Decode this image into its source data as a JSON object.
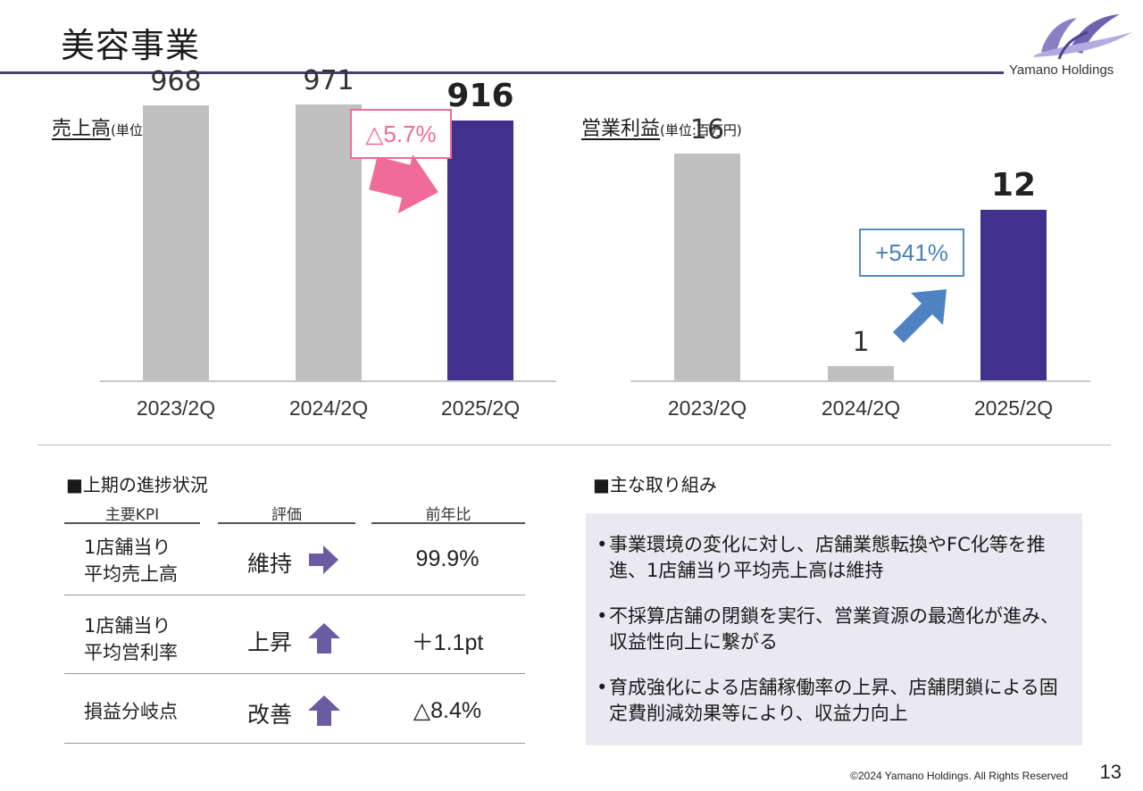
{
  "header": {
    "title": "美容事業",
    "logo_text": "Yamano Holdings"
  },
  "chart_data": [
    {
      "type": "bar",
      "title": "売上高",
      "unit_label": "(単位:百万円)",
      "categories": [
        "2023/2Q",
        "2024/2Q",
        "2025/2Q"
      ],
      "values": [
        968,
        971,
        916
      ],
      "value_labels": [
        "968",
        "971",
        "916"
      ],
      "ylim": [
        0,
        1100
      ],
      "annotation": "△5.7%",
      "colors": [
        "#c0c0c0",
        "#c0c0c0",
        "#42318c"
      ],
      "annotation_color": "#f06a9a"
    },
    {
      "type": "bar",
      "title": "営業利益",
      "unit_label": "(単位:百万円)",
      "categories": [
        "2023/2Q",
        "2024/2Q",
        "2025/2Q"
      ],
      "values": [
        16,
        1,
        12
      ],
      "value_labels": [
        "16",
        "1",
        "12"
      ],
      "ylim": [
        0,
        19.5
      ],
      "annotation": "+541%",
      "colors": [
        "#c0c0c0",
        "#c0c0c0",
        "#42318c"
      ],
      "annotation_color": "#5a8cc0"
    }
  ],
  "kpi": {
    "section_title": "■上期の進捗状況",
    "headers": [
      "主要KPI",
      "評価",
      "前年比"
    ],
    "rows": [
      {
        "name": "1店舗当り\n平均売上高",
        "eval": "維持",
        "icon": "right-arrow-icon",
        "value": "99.9%"
      },
      {
        "name": "1店舗当り\n平均営利率",
        "eval": "上昇",
        "icon": "up-arrow-icon",
        "value": "＋1.1pt"
      },
      {
        "name": "損益分岐点",
        "eval": "改善",
        "icon": "up-arrow-icon",
        "value": "△8.4%"
      }
    ],
    "icon_color": "#6b5ba3"
  },
  "initiatives": {
    "section_title": "■主な取り組み",
    "items": [
      "事業環境の変化に対し、店舗業態転換やFC化等を推進、1店舗当り平均売上高は維持",
      "不採算店舗の閉鎖を実行、営業資源の最適化が進み、収益性向上に繋がる",
      "育成強化による店舗稼働率の上昇、店舗閉鎖による固定費削減効果等により、収益力向上"
    ]
  },
  "footer": {
    "copyright": "©2024 Yamano Holdings. All Rights Reserved",
    "page_number": "13"
  }
}
